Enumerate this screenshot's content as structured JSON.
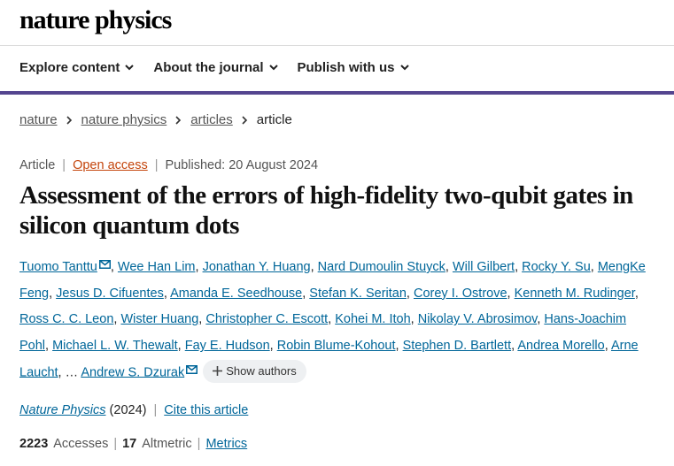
{
  "header": {
    "logo": "nature physics"
  },
  "nav": [
    "Explore content",
    "About the journal",
    "Publish with us"
  ],
  "breadcrumb": [
    "nature",
    "nature physics",
    "articles",
    "article"
  ],
  "meta": {
    "type": "Article",
    "access": "Open access",
    "published": "Published: 20 August 2024"
  },
  "title": "Assessment of the errors of high-fidelity two-qubit gates in silicon quantum dots",
  "authors": [
    "Tuomo Tanttu",
    "Wee Han Lim",
    "Jonathan Y. Huang",
    "Nard Dumoulin Stuyck",
    "Will Gilbert",
    "Rocky Y. Su",
    "MengKe Feng",
    "Jesus D. Cifuentes",
    "Amanda E. Seedhouse",
    "Stefan K. Seritan",
    "Corey I. Ostrove",
    "Kenneth M. Rudinger",
    "Ross C. C. Leon",
    "Wister Huang",
    "Christopher C. Escott",
    "Kohei M. Itoh",
    "Nikolay V. Abrosimov",
    "Hans-Joachim Pohl",
    "Michael L. W. Thewalt",
    "Fay E. Hudson",
    "Robin Blume-Kohout",
    "Stephen D. Bartlett",
    "Andrea Morello",
    "Arne Laucht"
  ],
  "ellipsis": "…",
  "last_author": "Andrew S. Dzurak",
  "show_authors": "Show authors",
  "citation": {
    "journal": "Nature Physics",
    "year": "(2024)",
    "cite": "Cite this article"
  },
  "metrics": {
    "accesses": 2223,
    "accesses_label": "Accesses",
    "altmetric": 17,
    "altmetric_label": "Altmetric",
    "link": "Metrics"
  }
}
